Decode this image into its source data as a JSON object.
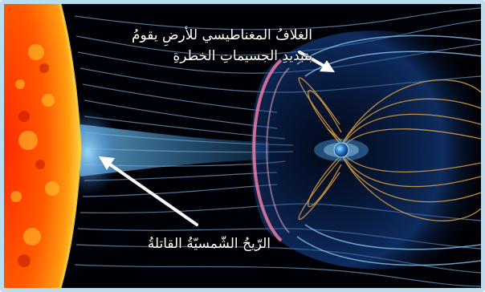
{
  "labels": {
    "magnetosphere_line1": "الغلافُ المغناطيسي للأرضِ يقومُ",
    "magnetosphere_line2": "بتبديدِ الجسيماتِ الخطرةِ",
    "solar_wind": "الرّيحُ الشّمسيّةُ القاتلةُ"
  },
  "colors": {
    "frame_border": "#b9dcee",
    "space": "#000106",
    "sun_core": "#ff4a00",
    "sun_edge": "#ffb000",
    "field_line": "#8fd0ff",
    "magnetic_loop": "#e0a040",
    "bow_shock": "#ff7fa0",
    "arrow": "#ffffff"
  },
  "icons": {
    "sun": "sun-illustration",
    "earth": "earth-globe-icon"
  }
}
